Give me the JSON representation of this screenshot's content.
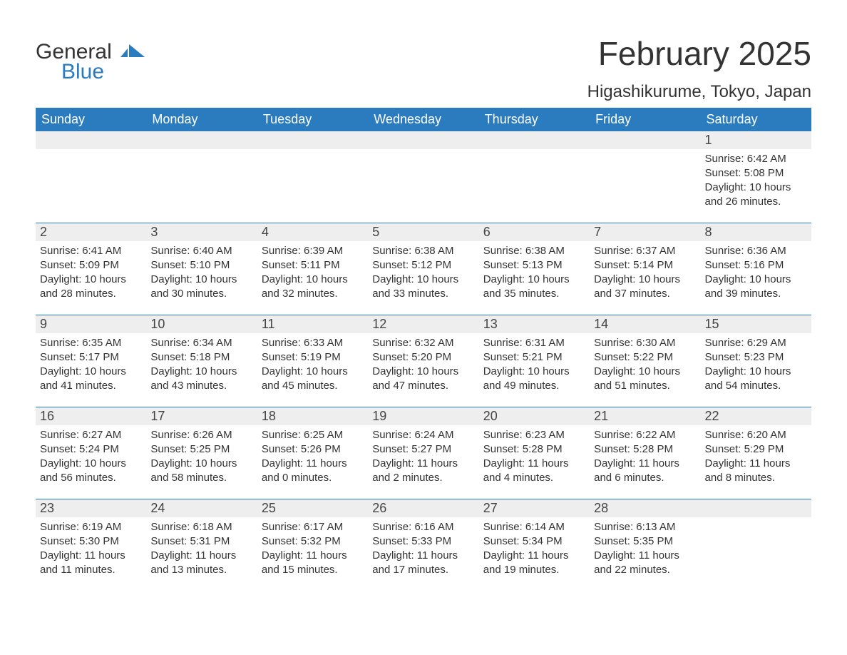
{
  "logo": {
    "general": "General",
    "blue": "Blue"
  },
  "title": "February 2025",
  "location": "Higashikurume, Tokyo, Japan",
  "colors": {
    "header_bg": "#2b7bbf",
    "daynum_bg": "#eeeeee",
    "week_border": "#2b7bbf",
    "text": "#333333",
    "page_bg": "#ffffff"
  },
  "weekdays": [
    "Sunday",
    "Monday",
    "Tuesday",
    "Wednesday",
    "Thursday",
    "Friday",
    "Saturday"
  ],
  "weeks": [
    [
      null,
      null,
      null,
      null,
      null,
      null,
      {
        "n": "1",
        "sunrise": "Sunrise: 6:42 AM",
        "sunset": "Sunset: 5:08 PM",
        "daylight": "Daylight: 10 hours and 26 minutes."
      }
    ],
    [
      {
        "n": "2",
        "sunrise": "Sunrise: 6:41 AM",
        "sunset": "Sunset: 5:09 PM",
        "daylight": "Daylight: 10 hours and 28 minutes."
      },
      {
        "n": "3",
        "sunrise": "Sunrise: 6:40 AM",
        "sunset": "Sunset: 5:10 PM",
        "daylight": "Daylight: 10 hours and 30 minutes."
      },
      {
        "n": "4",
        "sunrise": "Sunrise: 6:39 AM",
        "sunset": "Sunset: 5:11 PM",
        "daylight": "Daylight: 10 hours and 32 minutes."
      },
      {
        "n": "5",
        "sunrise": "Sunrise: 6:38 AM",
        "sunset": "Sunset: 5:12 PM",
        "daylight": "Daylight: 10 hours and 33 minutes."
      },
      {
        "n": "6",
        "sunrise": "Sunrise: 6:38 AM",
        "sunset": "Sunset: 5:13 PM",
        "daylight": "Daylight: 10 hours and 35 minutes."
      },
      {
        "n": "7",
        "sunrise": "Sunrise: 6:37 AM",
        "sunset": "Sunset: 5:14 PM",
        "daylight": "Daylight: 10 hours and 37 minutes."
      },
      {
        "n": "8",
        "sunrise": "Sunrise: 6:36 AM",
        "sunset": "Sunset: 5:16 PM",
        "daylight": "Daylight: 10 hours and 39 minutes."
      }
    ],
    [
      {
        "n": "9",
        "sunrise": "Sunrise: 6:35 AM",
        "sunset": "Sunset: 5:17 PM",
        "daylight": "Daylight: 10 hours and 41 minutes."
      },
      {
        "n": "10",
        "sunrise": "Sunrise: 6:34 AM",
        "sunset": "Sunset: 5:18 PM",
        "daylight": "Daylight: 10 hours and 43 minutes."
      },
      {
        "n": "11",
        "sunrise": "Sunrise: 6:33 AM",
        "sunset": "Sunset: 5:19 PM",
        "daylight": "Daylight: 10 hours and 45 minutes."
      },
      {
        "n": "12",
        "sunrise": "Sunrise: 6:32 AM",
        "sunset": "Sunset: 5:20 PM",
        "daylight": "Daylight: 10 hours and 47 minutes."
      },
      {
        "n": "13",
        "sunrise": "Sunrise: 6:31 AM",
        "sunset": "Sunset: 5:21 PM",
        "daylight": "Daylight: 10 hours and 49 minutes."
      },
      {
        "n": "14",
        "sunrise": "Sunrise: 6:30 AM",
        "sunset": "Sunset: 5:22 PM",
        "daylight": "Daylight: 10 hours and 51 minutes."
      },
      {
        "n": "15",
        "sunrise": "Sunrise: 6:29 AM",
        "sunset": "Sunset: 5:23 PM",
        "daylight": "Daylight: 10 hours and 54 minutes."
      }
    ],
    [
      {
        "n": "16",
        "sunrise": "Sunrise: 6:27 AM",
        "sunset": "Sunset: 5:24 PM",
        "daylight": "Daylight: 10 hours and 56 minutes."
      },
      {
        "n": "17",
        "sunrise": "Sunrise: 6:26 AM",
        "sunset": "Sunset: 5:25 PM",
        "daylight": "Daylight: 10 hours and 58 minutes."
      },
      {
        "n": "18",
        "sunrise": "Sunrise: 6:25 AM",
        "sunset": "Sunset: 5:26 PM",
        "daylight": "Daylight: 11 hours and 0 minutes."
      },
      {
        "n": "19",
        "sunrise": "Sunrise: 6:24 AM",
        "sunset": "Sunset: 5:27 PM",
        "daylight": "Daylight: 11 hours and 2 minutes."
      },
      {
        "n": "20",
        "sunrise": "Sunrise: 6:23 AM",
        "sunset": "Sunset: 5:28 PM",
        "daylight": "Daylight: 11 hours and 4 minutes."
      },
      {
        "n": "21",
        "sunrise": "Sunrise: 6:22 AM",
        "sunset": "Sunset: 5:28 PM",
        "daylight": "Daylight: 11 hours and 6 minutes."
      },
      {
        "n": "22",
        "sunrise": "Sunrise: 6:20 AM",
        "sunset": "Sunset: 5:29 PM",
        "daylight": "Daylight: 11 hours and 8 minutes."
      }
    ],
    [
      {
        "n": "23",
        "sunrise": "Sunrise: 6:19 AM",
        "sunset": "Sunset: 5:30 PM",
        "daylight": "Daylight: 11 hours and 11 minutes."
      },
      {
        "n": "24",
        "sunrise": "Sunrise: 6:18 AM",
        "sunset": "Sunset: 5:31 PM",
        "daylight": "Daylight: 11 hours and 13 minutes."
      },
      {
        "n": "25",
        "sunrise": "Sunrise: 6:17 AM",
        "sunset": "Sunset: 5:32 PM",
        "daylight": "Daylight: 11 hours and 15 minutes."
      },
      {
        "n": "26",
        "sunrise": "Sunrise: 6:16 AM",
        "sunset": "Sunset: 5:33 PM",
        "daylight": "Daylight: 11 hours and 17 minutes."
      },
      {
        "n": "27",
        "sunrise": "Sunrise: 6:14 AM",
        "sunset": "Sunset: 5:34 PM",
        "daylight": "Daylight: 11 hours and 19 minutes."
      },
      {
        "n": "28",
        "sunrise": "Sunrise: 6:13 AM",
        "sunset": "Sunset: 5:35 PM",
        "daylight": "Daylight: 11 hours and 22 minutes."
      },
      null
    ]
  ]
}
